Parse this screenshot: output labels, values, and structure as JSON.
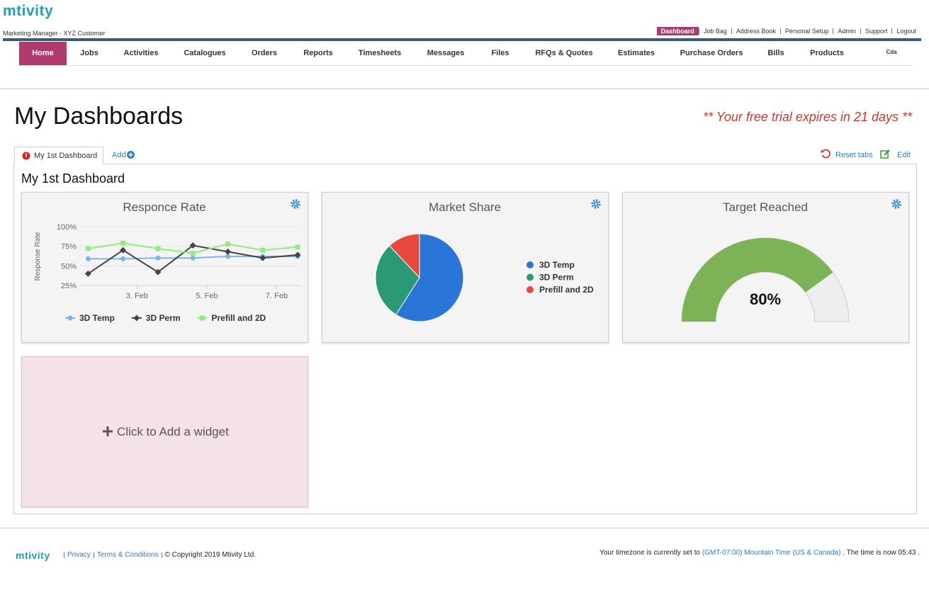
{
  "header": {
    "logo": "mtivity",
    "user": "Marketing Manager - XYZ Customer",
    "links": [
      "Dashboard",
      "Job Bag",
      "Address Book",
      "Personal Setup",
      "Admin",
      "Support",
      "Logout"
    ]
  },
  "nav": [
    "Home",
    "Jobs",
    "Activities",
    "Catalogues",
    "Orders",
    "Reports",
    "Timesheets",
    "Messages",
    "Files",
    "RFQs & Quotes",
    "Estimates",
    "Purchase Orders",
    "Bills",
    "Products",
    "Cda"
  ],
  "page": {
    "title": "My Dashboards",
    "trial_notice": "** Your free trial expires in 21 days **"
  },
  "tabs": {
    "items": [
      "My 1st Dashboard"
    ],
    "add": "Add",
    "reset": "Reset tabs",
    "edit": "Edit"
  },
  "dashboard": {
    "title": "My 1st Dashboard",
    "add_widget": "Click to Add a widget"
  },
  "chart_data": [
    {
      "type": "line",
      "title": "Responce Rate",
      "y_label": "Response Rate",
      "x": [
        1.6,
        2.6,
        3.6,
        4.6,
        5.6,
        6.6,
        7.6
      ],
      "xlim": [
        1.35,
        7.7
      ],
      "xticks": [
        {
          "value": 3,
          "label": "3. Feb"
        },
        {
          "value": 5,
          "label": "5. Feb"
        },
        {
          "value": 7,
          "label": "7. Feb"
        }
      ],
      "ylim": [
        25,
        100
      ],
      "yticks": [
        {
          "value": 25,
          "label": "25%"
        },
        {
          "value": 50,
          "label": "50%"
        },
        {
          "value": 75,
          "label": "75%"
        },
        {
          "value": 100,
          "label": "100%"
        }
      ],
      "grid": true,
      "legend": "bottom",
      "series": [
        {
          "name": "3D Temp",
          "color": "#7cb5ec",
          "marker": "circle",
          "values": [
            59,
            59,
            60,
            60,
            62,
            62,
            62
          ]
        },
        {
          "name": "3D Perm",
          "color": "#434348",
          "marker": "diamond",
          "values": [
            40,
            70,
            42,
            76,
            68,
            60,
            64
          ]
        },
        {
          "name": "Prefill and 2D",
          "color": "#90ed7d",
          "marker": "square",
          "values": [
            72,
            79,
            72,
            66,
            78,
            70,
            74
          ]
        }
      ]
    },
    {
      "type": "pie",
      "title": "Market Share",
      "categories": [
        "3D Temp",
        "3D Perm",
        "Prefill and 2D"
      ],
      "values": [
        59,
        29,
        12
      ],
      "colors": [
        "#2a75d8",
        "#2a9a76",
        "#e64a3c"
      ],
      "legend": "right"
    },
    {
      "type": "gauge",
      "title": "Target Reached",
      "values": [
        80
      ],
      "value_labels": [
        "80%"
      ],
      "ylim": [
        0,
        100
      ],
      "color": "#7db356",
      "track_color": "#eeeeee"
    }
  ],
  "footer": {
    "logo": "mtivity",
    "links": [
      "Privacy",
      "Terms & Conditions"
    ],
    "copyright": "© Copyright 2019 Mtivity Ltd.",
    "timezone_prefix": "Your timezone is currently set to",
    "timezone": "(GMT-07:00) Mountain Time (US & Canada)",
    "time_text": ". The time is now 05:43 ."
  }
}
